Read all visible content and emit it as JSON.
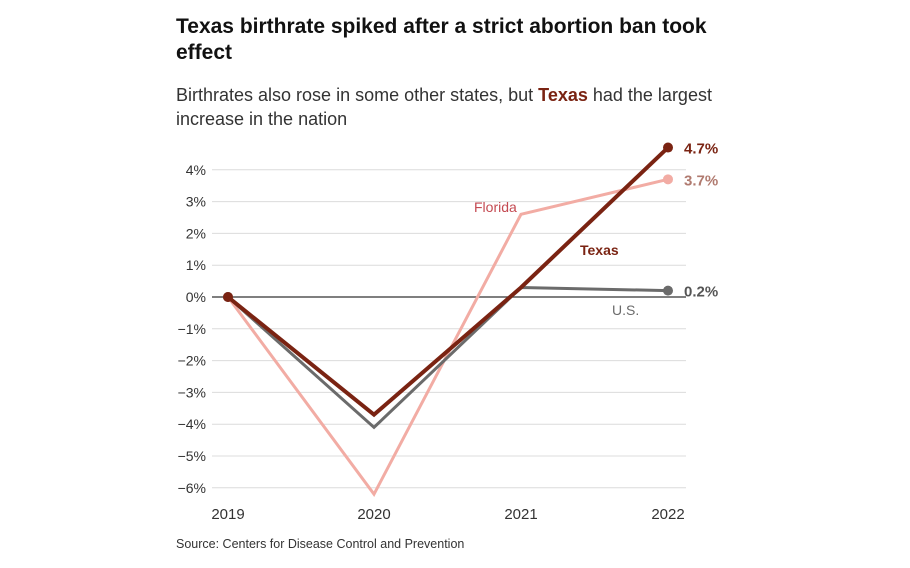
{
  "header": {
    "title": "Texas birthrate spiked after a strict abortion ban took effect",
    "subtitle_before": "Birthrates also rose in some other states, but ",
    "subtitle_highlight": "Texas",
    "subtitle_after": " had the largest increase in the nation"
  },
  "footer": {
    "source": "Source: Centers for Disease Control and Prevention"
  },
  "chart_data": {
    "type": "line",
    "title": "Texas birthrate spiked after a strict abortion ban took effect",
    "xlabel": "",
    "ylabel": "",
    "categories": [
      "2019",
      "2020",
      "2021",
      "2022"
    ],
    "ylim": [
      -6,
      4.7
    ],
    "yticks": [
      4,
      3,
      2,
      1,
      0,
      -1,
      -2,
      -3,
      -4,
      -5,
      -6
    ],
    "ytick_labels": [
      "4%",
      "3%",
      "2%",
      "1%",
      "0%",
      "−1%",
      "−2%",
      "−3%",
      "−4%",
      "−5%",
      "−6%"
    ],
    "grid": true,
    "series": [
      {
        "name": "Florida",
        "label": "Florida",
        "values": [
          0,
          -6.2,
          2.6,
          3.7
        ],
        "end_label": "3.7%",
        "color": "#f2aca4",
        "label_color": "#c44a52"
      },
      {
        "name": "U.S.",
        "label": "U.S.",
        "values": [
          0,
          -4.1,
          0.3,
          0.2
        ],
        "end_label": "0.2%",
        "color": "#6b6b6b",
        "label_color": "#6b6b6b"
      },
      {
        "name": "Texas",
        "label": "Texas",
        "values": [
          0,
          -3.7,
          0.3,
          4.7
        ],
        "end_label": "4.7%",
        "color": "#7a2312",
        "label_color": "#7a2312"
      }
    ],
    "end_label_colors": {
      "Florida": "#b07a6f",
      "U.S.": "#555555",
      "Texas": "#7a2312"
    }
  }
}
